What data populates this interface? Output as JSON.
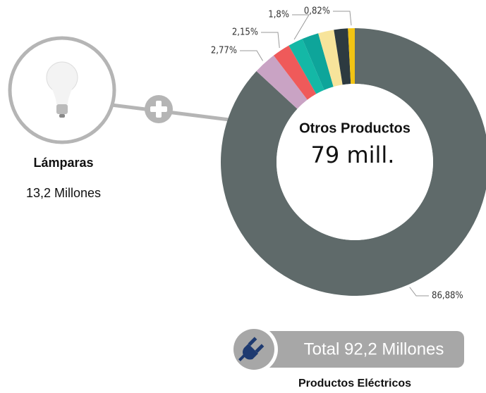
{
  "chart_data": {
    "type": "donut",
    "title": "Otros Productos",
    "subtitle": "79 mill.",
    "values": [
      86.88,
      2.77,
      2.15,
      1.8,
      2.0,
      1.9,
      1.68,
      0.82
    ],
    "value_labels": [
      "86,88%",
      "2,77%",
      "2,15%",
      "1,8%",
      null,
      null,
      null,
      "0,82%"
    ],
    "colors": [
      "#5f6a6a",
      "#c9a3c4",
      "#ef5a5a",
      "#14b8a6",
      "#0ea59a",
      "#f7e49b",
      "#2d3a40",
      "#f2c413"
    ]
  },
  "callout": {
    "title": "Lámparas",
    "value": "13,2 Millones"
  },
  "total": {
    "label": "Total 92,2 Millones",
    "caption": "Productos Eléctricos"
  }
}
